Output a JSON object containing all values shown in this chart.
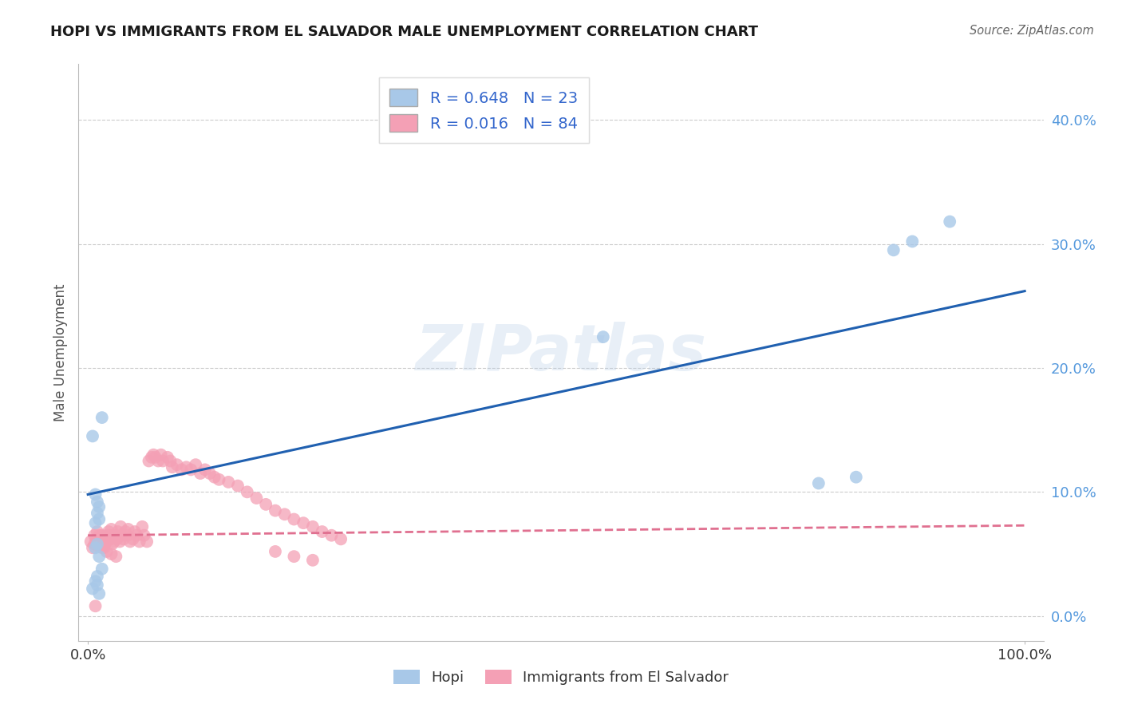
{
  "title": "HOPI VS IMMIGRANTS FROM EL SALVADOR MALE UNEMPLOYMENT CORRELATION CHART",
  "source": "Source: ZipAtlas.com",
  "ylabel": "Male Unemployment",
  "legend_hopi_R": "R = 0.648",
  "legend_hopi_N": "N = 23",
  "legend_salv_R": "R = 0.016",
  "legend_salv_N": "N = 84",
  "legend_hopi_label": "Hopi",
  "legend_salv_label": "Immigrants from El Salvador",
  "hopi_color": "#a8c8e8",
  "salv_color": "#f4a0b5",
  "hopi_line_color": "#2060b0",
  "salv_line_color": "#e07090",
  "ytick_labels": [
    "0.0%",
    "10.0%",
    "20.0%",
    "30.0%",
    "40.0%"
  ],
  "ytick_values": [
    0.0,
    0.1,
    0.2,
    0.3,
    0.4
  ],
  "xlim": [
    -0.01,
    1.02
  ],
  "ylim": [
    -0.02,
    0.445
  ],
  "hopi_line_x0": 0.0,
  "hopi_line_y0": 0.098,
  "hopi_line_x1": 1.0,
  "hopi_line_y1": 0.262,
  "salv_line_x0": 0.0,
  "salv_line_y0": 0.065,
  "salv_line_x1": 1.0,
  "salv_line_y1": 0.073,
  "hopi_x": [
    0.008,
    0.01,
    0.012,
    0.01,
    0.008,
    0.012,
    0.015,
    0.005,
    0.008,
    0.01,
    0.012,
    0.015,
    0.01,
    0.008,
    0.005,
    0.01,
    0.012,
    0.55,
    0.78,
    0.82,
    0.86,
    0.92,
    0.88
  ],
  "hopi_y": [
    0.098,
    0.092,
    0.088,
    0.083,
    0.075,
    0.078,
    0.16,
    0.145,
    0.055,
    0.058,
    0.048,
    0.038,
    0.032,
    0.028,
    0.022,
    0.025,
    0.018,
    0.225,
    0.107,
    0.112,
    0.295,
    0.318,
    0.302
  ],
  "salv_x": [
    0.003,
    0.005,
    0.007,
    0.009,
    0.01,
    0.01,
    0.012,
    0.013,
    0.014,
    0.015,
    0.016,
    0.017,
    0.018,
    0.02,
    0.02,
    0.021,
    0.022,
    0.023,
    0.024,
    0.025,
    0.026,
    0.027,
    0.028,
    0.03,
    0.031,
    0.032,
    0.034,
    0.035,
    0.036,
    0.038,
    0.04,
    0.042,
    0.043,
    0.045,
    0.048,
    0.05,
    0.052,
    0.055,
    0.058,
    0.06,
    0.063,
    0.065,
    0.068,
    0.07,
    0.072,
    0.075,
    0.078,
    0.08,
    0.085,
    0.088,
    0.09,
    0.095,
    0.1,
    0.105,
    0.11,
    0.115,
    0.12,
    0.125,
    0.13,
    0.135,
    0.14,
    0.15,
    0.16,
    0.17,
    0.18,
    0.19,
    0.2,
    0.21,
    0.22,
    0.23,
    0.24,
    0.25,
    0.26,
    0.27,
    0.01,
    0.015,
    0.02,
    0.025,
    0.03,
    0.2,
    0.22,
    0.24,
    0.007,
    0.008
  ],
  "salv_y": [
    0.06,
    0.055,
    0.065,
    0.062,
    0.068,
    0.062,
    0.065,
    0.058,
    0.06,
    0.065,
    0.062,
    0.055,
    0.058,
    0.065,
    0.06,
    0.062,
    0.068,
    0.065,
    0.062,
    0.07,
    0.058,
    0.065,
    0.06,
    0.065,
    0.062,
    0.068,
    0.06,
    0.072,
    0.065,
    0.062,
    0.068,
    0.065,
    0.07,
    0.06,
    0.062,
    0.068,
    0.065,
    0.06,
    0.072,
    0.065,
    0.06,
    0.125,
    0.128,
    0.13,
    0.128,
    0.125,
    0.13,
    0.125,
    0.128,
    0.125,
    0.12,
    0.122,
    0.118,
    0.12,
    0.118,
    0.122,
    0.115,
    0.118,
    0.115,
    0.112,
    0.11,
    0.108,
    0.105,
    0.1,
    0.095,
    0.09,
    0.085,
    0.082,
    0.078,
    0.075,
    0.072,
    0.068,
    0.065,
    0.062,
    0.058,
    0.055,
    0.052,
    0.05,
    0.048,
    0.052,
    0.048,
    0.045,
    0.058,
    0.008
  ],
  "background_color": "#ffffff",
  "grid_color": "#cccccc"
}
